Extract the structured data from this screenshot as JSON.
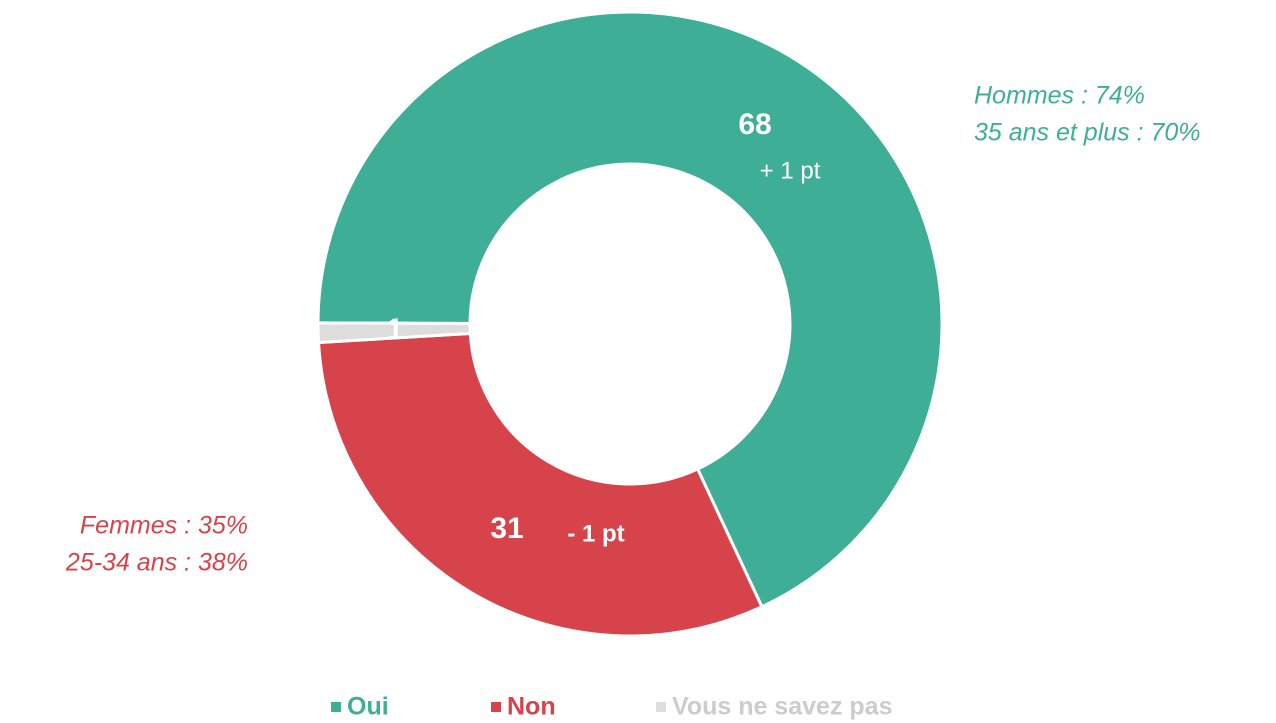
{
  "chart_data": {
    "type": "donut",
    "categories": [
      "Oui",
      "Non",
      "Vous ne savez pas"
    ],
    "values": [
      68,
      31,
      1
    ],
    "colors": [
      "#3fae97",
      "#d7434b",
      "#dddddd"
    ],
    "change_labels": [
      "+ 1 pt",
      "- 1 pt"
    ],
    "annotations": [
      {
        "lines": [
          "Hommes : 74%",
          "35 ans et plus  : 70%"
        ],
        "color": "#3fae97"
      },
      {
        "lines": [
          "Femmes : 35%",
          "25-34 ans : 38%"
        ],
        "color": "#d7434b"
      }
    ],
    "legend": "bottom"
  }
}
